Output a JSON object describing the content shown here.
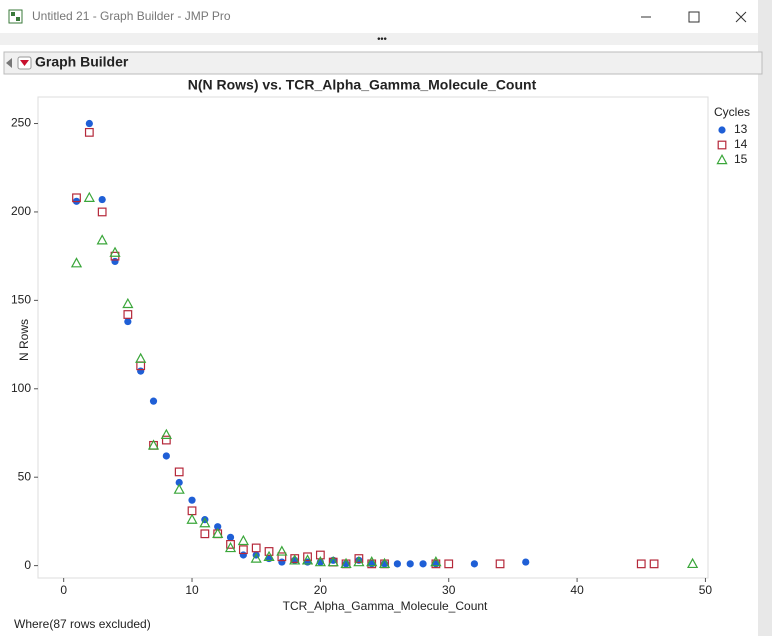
{
  "window": {
    "title": "Untitled 21 - Graph Builder - JMP Pro",
    "more": "•••",
    "panel_title": "Graph Builder",
    "footer": "Where(87 rows excluded)"
  },
  "chart_data": {
    "type": "scatter",
    "title": "N(N Rows) vs. TCR_Alpha_Gamma_Molecule_Count",
    "x_label": "TCR_Alpha_Gamma_Molecule_Count",
    "y_label": "N Rows",
    "legend_title": "Cycles",
    "legend_position": "right",
    "xlim": [
      -2,
      50.2
    ],
    "ylim": [
      -7,
      265
    ],
    "xticks": [
      0,
      10,
      20,
      30,
      40,
      50
    ],
    "yticks": [
      0,
      50,
      100,
      150,
      200,
      250
    ],
    "grid": false,
    "series": [
      {
        "name": "13",
        "color": "#1f5fd6",
        "marker": "circle",
        "x": [
          1,
          2,
          3,
          4,
          5,
          6,
          7,
          8,
          9,
          10,
          11,
          12,
          13,
          14,
          15,
          16,
          17,
          18,
          19,
          20,
          21,
          22,
          23,
          24,
          25,
          26,
          27,
          28,
          29,
          32,
          36
        ],
        "values": [
          206,
          250,
          207,
          172,
          138,
          110,
          93,
          62,
          47,
          37,
          26,
          22,
          16,
          6,
          6,
          4,
          2,
          3,
          2,
          2,
          3,
          1,
          3,
          1,
          1,
          1,
          1,
          1,
          1,
          1,
          2
        ]
      },
      {
        "name": "14",
        "color": "#b5283a",
        "marker": "square",
        "x": [
          1,
          2,
          3,
          4,
          5,
          6,
          7,
          8,
          9,
          10,
          11,
          12,
          13,
          14,
          15,
          16,
          17,
          18,
          19,
          20,
          21,
          22,
          23,
          24,
          25,
          29,
          30,
          34,
          45,
          46
        ],
        "values": [
          208,
          245,
          200,
          175,
          142,
          113,
          68,
          71,
          53,
          31,
          18,
          18,
          12,
          9,
          10,
          8,
          5,
          4,
          5,
          6,
          2,
          1,
          4,
          1,
          1,
          1,
          1,
          1,
          1,
          1
        ]
      },
      {
        "name": "15",
        "color": "#3aa63a",
        "marker": "triangle",
        "x": [
          1,
          2,
          3,
          4,
          5,
          6,
          7,
          8,
          9,
          10,
          11,
          12,
          13,
          14,
          15,
          16,
          17,
          18,
          19,
          20,
          21,
          22,
          23,
          24,
          25,
          29,
          49
        ],
        "values": [
          171,
          208,
          184,
          177,
          148,
          117,
          68,
          74,
          43,
          26,
          24,
          18,
          10,
          14,
          4,
          5,
          8,
          3,
          3,
          2,
          2,
          1,
          2,
          2,
          1,
          2,
          1
        ]
      }
    ]
  }
}
